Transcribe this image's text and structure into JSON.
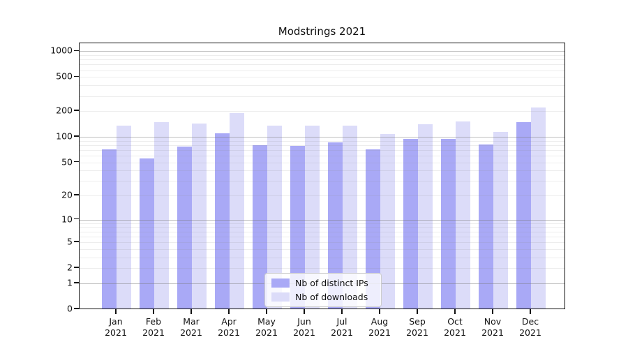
{
  "chart_data": {
    "type": "bar",
    "title": "Modstrings 2021",
    "categories": [
      "Jan",
      "Feb",
      "Mar",
      "Apr",
      "May",
      "Jun",
      "Jul",
      "Aug",
      "Sep",
      "Oct",
      "Nov",
      "Dec"
    ],
    "category_year": "2021",
    "series": [
      {
        "name": "Nb of distinct IPs",
        "color": "#a9a9f6",
        "values": [
          70,
          55,
          75,
          109,
          79,
          77,
          85,
          70,
          92,
          93,
          80,
          146
        ]
      },
      {
        "name": "Nb of downloads",
        "color": "#dcdcf9",
        "values": [
          132,
          147,
          141,
          187,
          134,
          132,
          132,
          106,
          138,
          150,
          112,
          216
        ]
      }
    ],
    "xlabel": "",
    "ylabel": "",
    "yscale": "log(1+x)",
    "ylim": [
      0,
      1258
    ],
    "yticks": [
      0,
      1,
      2,
      5,
      10,
      20,
      50,
      100,
      200,
      500,
      1000
    ],
    "ytick_labels": [
      "0",
      "1",
      "2",
      "5",
      "10",
      "20",
      "50",
      "100",
      "200",
      "500",
      "1000"
    ],
    "major_gridlines": [
      1,
      10,
      100,
      1000
    ],
    "minor_gridlines": [
      2,
      3,
      4,
      5,
      6,
      7,
      8,
      9,
      20,
      30,
      40,
      50,
      60,
      70,
      80,
      90,
      200,
      300,
      400,
      500,
      600,
      700,
      800,
      900
    ],
    "grid": true,
    "legend_position": "lower center"
  },
  "colors": {
    "axis": "#111111",
    "background": "#ffffff",
    "major_grid": "#b9b9b9",
    "minor_grid": "#ebebeb"
  }
}
